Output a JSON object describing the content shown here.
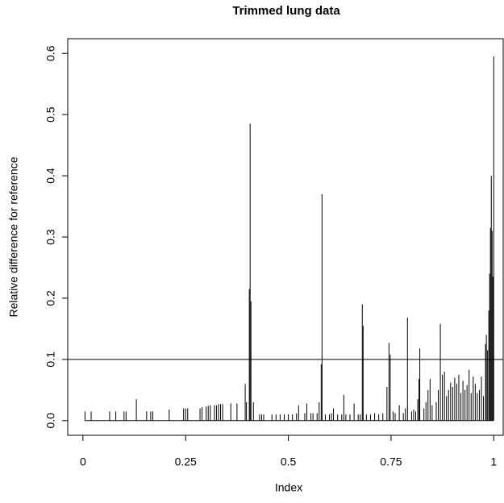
{
  "chart_data": {
    "type": "spike",
    "title": "Trimmed lung data",
    "x_label": "Index",
    "y_label": "Relative difference for reference",
    "x": [
      0.005,
      0.02,
      0.065,
      0.08,
      0.1,
      0.105,
      0.13,
      0.155,
      0.165,
      0.17,
      0.21,
      0.245,
      0.25,
      0.255,
      0.285,
      0.29,
      0.3,
      0.305,
      0.31,
      0.32,
      0.325,
      0.33,
      0.335,
      0.34,
      0.36,
      0.375,
      0.395,
      0.398,
      0.405,
      0.407,
      0.409,
      0.415,
      0.43,
      0.435,
      0.44,
      0.46,
      0.47,
      0.48,
      0.49,
      0.5,
      0.51,
      0.52,
      0.525,
      0.54,
      0.545,
      0.555,
      0.56,
      0.57,
      0.575,
      0.58,
      0.582,
      0.59,
      0.6,
      0.605,
      0.61,
      0.62,
      0.63,
      0.635,
      0.64,
      0.65,
      0.66,
      0.67,
      0.675,
      0.68,
      0.682,
      0.69,
      0.7,
      0.71,
      0.72,
      0.73,
      0.74,
      0.745,
      0.748,
      0.755,
      0.76,
      0.77,
      0.78,
      0.785,
      0.79,
      0.8,
      0.805,
      0.81,
      0.815,
      0.818,
      0.82,
      0.83,
      0.835,
      0.84,
      0.845,
      0.85,
      0.86,
      0.865,
      0.87,
      0.875,
      0.88,
      0.885,
      0.89,
      0.895,
      0.9,
      0.905,
      0.91,
      0.915,
      0.92,
      0.925,
      0.93,
      0.935,
      0.94,
      0.945,
      0.95,
      0.955,
      0.96,
      0.965,
      0.97,
      0.975,
      0.98,
      0.982,
      0.985,
      0.988,
      0.99,
      0.992,
      0.994,
      0.996,
      0.998,
      1.0
    ],
    "values": [
      0.015,
      0.015,
      0.015,
      0.015,
      0.015,
      0.015,
      0.035,
      0.015,
      0.015,
      0.015,
      0.018,
      0.02,
      0.02,
      0.02,
      0.02,
      0.022,
      0.023,
      0.024,
      0.025,
      0.025,
      0.025,
      0.027,
      0.027,
      0.027,
      0.028,
      0.028,
      0.06,
      0.03,
      0.215,
      0.485,
      0.195,
      0.03,
      0.01,
      0.01,
      0.01,
      0.01,
      0.01,
      0.01,
      0.01,
      0.01,
      0.01,
      0.012,
      0.025,
      0.012,
      0.028,
      0.012,
      0.012,
      0.012,
      0.03,
      0.092,
      0.37,
      0.01,
      0.01,
      0.012,
      0.02,
      0.01,
      0.01,
      0.042,
      0.01,
      0.01,
      0.028,
      0.01,
      0.01,
      0.19,
      0.155,
      0.01,
      0.01,
      0.012,
      0.01,
      0.012,
      0.055,
      0.127,
      0.108,
      0.015,
      0.012,
      0.025,
      0.012,
      0.02,
      0.168,
      0.015,
      0.018,
      0.015,
      0.035,
      0.068,
      0.118,
      0.02,
      0.03,
      0.05,
      0.068,
      0.025,
      0.03,
      0.05,
      0.158,
      0.075,
      0.08,
      0.04,
      0.05,
      0.062,
      0.055,
      0.07,
      0.06,
      0.075,
      0.045,
      0.065,
      0.05,
      0.058,
      0.083,
      0.045,
      0.072,
      0.06,
      0.045,
      0.05,
      0.072,
      0.04,
      0.125,
      0.14,
      0.115,
      0.18,
      0.24,
      0.315,
      0.4,
      0.31,
      0.235,
      0.595
    ],
    "color": "#000000",
    "hline": 0.1,
    "xlim": [
      -0.037,
      1.023
    ],
    "ylim": [
      -0.024,
      0.624
    ],
    "xticks": [
      0,
      0.25,
      0.5,
      0.75,
      1
    ],
    "yticks": [
      {
        "value": 0,
        "label": "0.0"
      },
      0.1,
      0.2,
      0.3,
      0.4,
      0.5,
      0.6
    ]
  }
}
